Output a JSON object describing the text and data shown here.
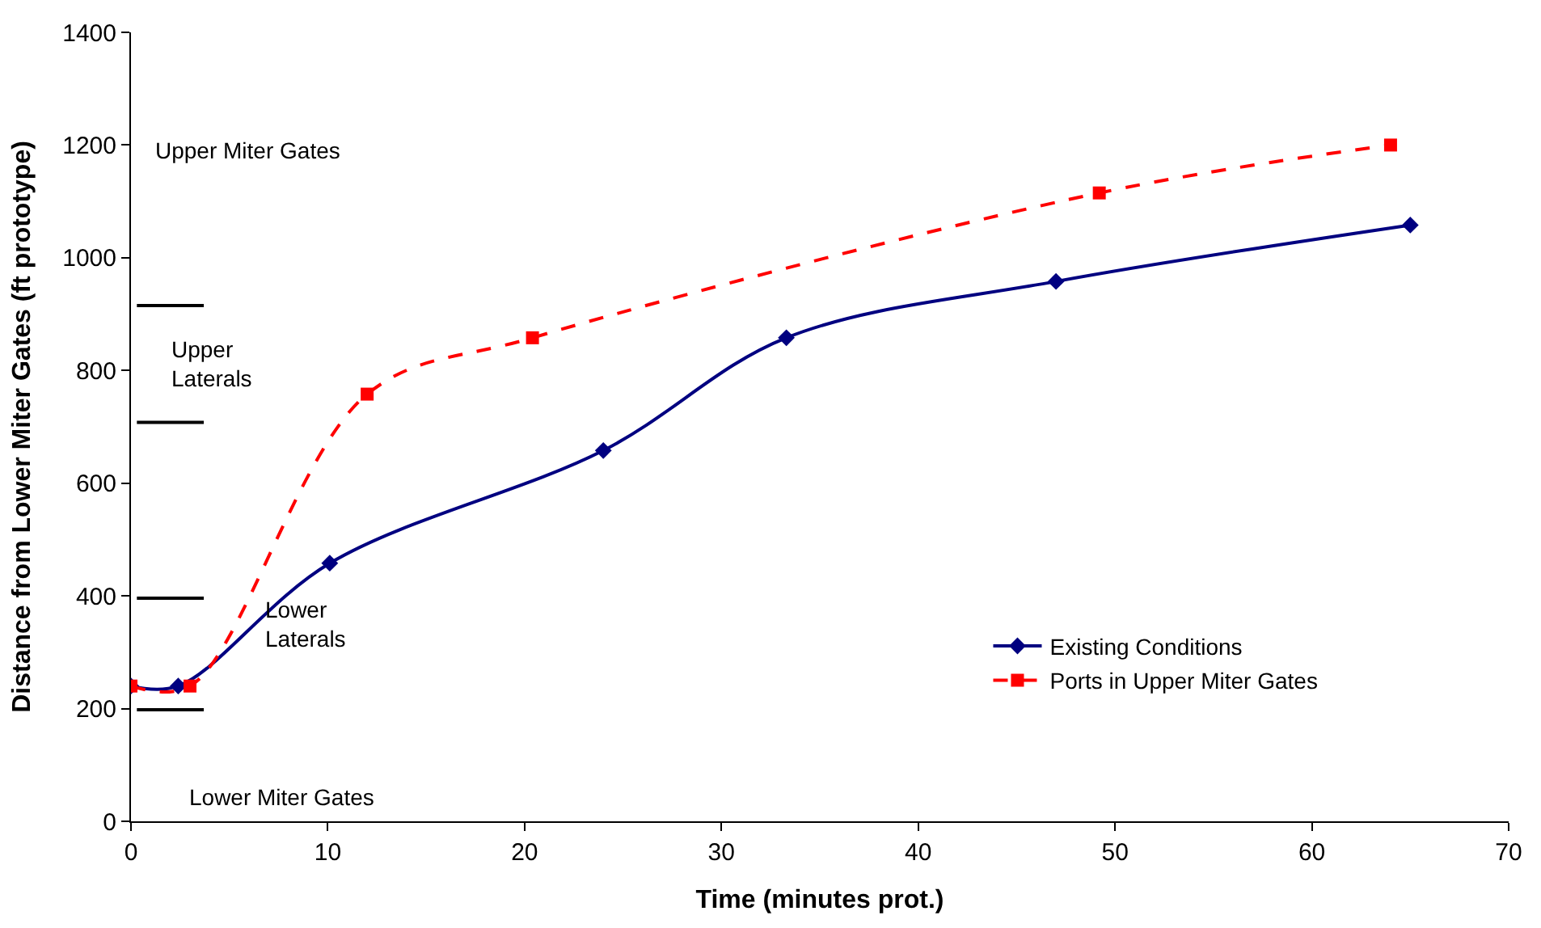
{
  "chart_data": {
    "type": "line",
    "xlabel": "Time (minutes prot.)",
    "ylabel": "Distance from Lower Miter Gates (ft prototype)",
    "xlim": [
      0,
      70
    ],
    "xticks": [
      0,
      10,
      20,
      30,
      40,
      50,
      60,
      70
    ],
    "ylim": [
      0,
      1400
    ],
    "yticks": [
      0,
      200,
      400,
      600,
      800,
      1000,
      1200,
      1400
    ],
    "legend": "bottom right",
    "series": [
      {
        "name": "Existing Conditions",
        "color": "#000080",
        "marker": "diamond",
        "line_style": "solid",
        "x": [
          0,
          2.4,
          10.1,
          24,
          33.3,
          47,
          65
        ],
        "values": [
          240,
          240,
          458,
          658,
          858,
          958,
          1058
        ]
      },
      {
        "name": "Ports in Upper Miter Gates",
        "color": "#ff0000",
        "marker": "square",
        "line_style": "dashed",
        "x": [
          0,
          3,
          12,
          20.4,
          49.2,
          64
        ],
        "values": [
          240,
          240,
          758,
          858,
          1115,
          1200
        ]
      },
      {
        "color": "#000000",
        "marker": "none",
        "line_style": "solid",
        "x": [
          0.3,
          3.7
        ],
        "values": [
          915,
          915
        ]
      },
      {
        "color": "#000000",
        "marker": "none",
        "line_style": "solid",
        "x": [
          0.3,
          3.7
        ],
        "values": [
          708,
          708
        ]
      },
      {
        "color": "#000000",
        "marker": "none",
        "line_style": "solid",
        "x": [
          0.3,
          3.7
        ],
        "values": [
          396,
          396
        ]
      },
      {
        "color": "#000000",
        "marker": "none",
        "line_style": "solid",
        "x": [
          0.3,
          3.7
        ],
        "values": [
          198,
          198
        ]
      }
    ],
    "annotations": [
      "Upper Miter Gates",
      "Upper\nLaterals",
      "Lower\nLaterals",
      "Lower Miter Gates"
    ]
  }
}
